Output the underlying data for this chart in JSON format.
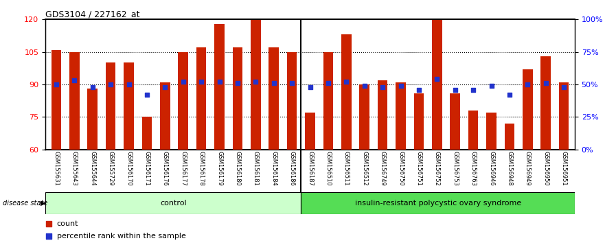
{
  "title": "GDS3104 / 227162_at",
  "samples": [
    "GSM155631",
    "GSM155643",
    "GSM155644",
    "GSM155729",
    "GSM156170",
    "GSM156171",
    "GSM156176",
    "GSM156177",
    "GSM156178",
    "GSM156179",
    "GSM156180",
    "GSM156181",
    "GSM156184",
    "GSM156186",
    "GSM156187",
    "GSM156510",
    "GSM156511",
    "GSM156512",
    "GSM156749",
    "GSM156750",
    "GSM156751",
    "GSM156752",
    "GSM156753",
    "GSM156763",
    "GSM156946",
    "GSM156948",
    "GSM156949",
    "GSM156950",
    "GSM156951"
  ],
  "bar_values": [
    106,
    105,
    88,
    100,
    100,
    75,
    91,
    105,
    107,
    118,
    107,
    120,
    107,
    105,
    77,
    105,
    113,
    90,
    92,
    91,
    86,
    120,
    86,
    78,
    77,
    72,
    97,
    103,
    91
  ],
  "percentile_values": [
    50,
    53,
    48,
    50,
    50,
    42,
    48,
    52,
    52,
    52,
    51,
    52,
    51,
    51,
    48,
    51,
    52,
    49,
    48,
    49,
    46,
    54,
    46,
    46,
    49,
    42,
    50,
    51,
    48
  ],
  "control_count": 14,
  "disease_count": 15,
  "ylim_left": [
    60,
    120
  ],
  "ylim_right": [
    0,
    100
  ],
  "yticks_left": [
    60,
    75,
    90,
    105,
    120
  ],
  "yticks_right": [
    0,
    25,
    50,
    75,
    100
  ],
  "ytick_labels_right": [
    "0%",
    "25%",
    "50%",
    "75%",
    "100%"
  ],
  "bar_color": "#cc2200",
  "percentile_color": "#2233cc",
  "control_label": "control",
  "disease_label": "insulin-resistant polycystic ovary syndrome",
  "legend_count_label": "count",
  "legend_pct_label": "percentile rank within the sample",
  "control_bg": "#ccffcc",
  "disease_bg": "#55dd55",
  "xlabel_area_bg": "#cccccc",
  "grid_color": "black"
}
